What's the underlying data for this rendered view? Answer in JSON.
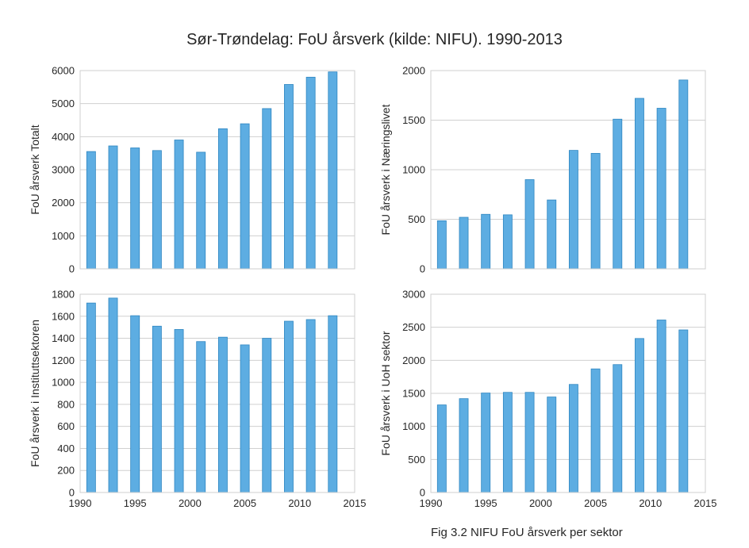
{
  "figure": {
    "title": "Sør-Trøndelag: FoU årsverk (kilde: NIFU). 1990-2013",
    "caption": "Fig 3.2 NIFU FoU årsverk per sektor"
  },
  "colors": {
    "bar_fill": "#5dade2",
    "bar_edge": "#2e86c1",
    "grid": "#d0d0d0",
    "frame": "#cfcfcf",
    "text": "#262626"
  },
  "chart_data": [
    {
      "type": "bar",
      "ylabel": "FoU årsverk Totalt",
      "x": [
        1991,
        1993,
        1995,
        1997,
        1999,
        2001,
        2003,
        2005,
        2007,
        2009,
        2011,
        2013
      ],
      "values": [
        3550,
        3720,
        3660,
        3580,
        3900,
        3530,
        4240,
        4390,
        4850,
        5580,
        5800,
        5960
      ],
      "xlim": [
        1990,
        2015
      ],
      "ylim": [
        0,
        6000
      ],
      "yticks": [
        0,
        1000,
        2000,
        3000,
        4000,
        5000,
        6000
      ],
      "xticks": [
        1990,
        1995,
        2000,
        2005,
        2010,
        2015
      ],
      "show_xticklabels": false,
      "grid": "horizontal"
    },
    {
      "type": "bar",
      "ylabel": "FoU årsverk i Næringslivet",
      "x": [
        1991,
        1993,
        1995,
        1997,
        1999,
        2001,
        2003,
        2005,
        2007,
        2009,
        2011,
        2013
      ],
      "values": [
        485,
        520,
        550,
        545,
        900,
        695,
        1195,
        1165,
        1510,
        1720,
        1620,
        1905
      ],
      "xlim": [
        1990,
        2015
      ],
      "ylim": [
        0,
        2000
      ],
      "yticks": [
        0,
        500,
        1000,
        1500,
        2000
      ],
      "xticks": [
        1990,
        1995,
        2000,
        2005,
        2010,
        2015
      ],
      "show_xticklabels": false,
      "grid": "horizontal"
    },
    {
      "type": "bar",
      "ylabel": "FoU årsverk i Instituttsektoren",
      "x": [
        1991,
        1993,
        1995,
        1997,
        1999,
        2001,
        2003,
        2005,
        2007,
        2009,
        2011,
        2013
      ],
      "values": [
        1720,
        1765,
        1605,
        1510,
        1480,
        1370,
        1410,
        1340,
        1400,
        1555,
        1570,
        1605
      ],
      "xlim": [
        1990,
        2015
      ],
      "ylim": [
        0,
        1800
      ],
      "yticks": [
        0,
        200,
        400,
        600,
        800,
        1000,
        1200,
        1400,
        1600,
        1800
      ],
      "xticks": [
        1990,
        1995,
        2000,
        2005,
        2010,
        2015
      ],
      "show_xticklabels": true,
      "grid": "horizontal"
    },
    {
      "type": "bar",
      "ylabel": "FoU årsverk i UoH sektor",
      "x": [
        1991,
        1993,
        1995,
        1997,
        1999,
        2001,
        2003,
        2005,
        2007,
        2009,
        2011,
        2013
      ],
      "values": [
        1325,
        1420,
        1505,
        1515,
        1515,
        1445,
        1635,
        1870,
        1935,
        2330,
        2610,
        2460
      ],
      "xlim": [
        1990,
        2015
      ],
      "ylim": [
        0,
        3000
      ],
      "yticks": [
        0,
        500,
        1000,
        1500,
        2000,
        2500,
        3000
      ],
      "xticks": [
        1990,
        1995,
        2000,
        2005,
        2010,
        2015
      ],
      "show_xticklabels": true,
      "grid": "horizontal"
    }
  ]
}
